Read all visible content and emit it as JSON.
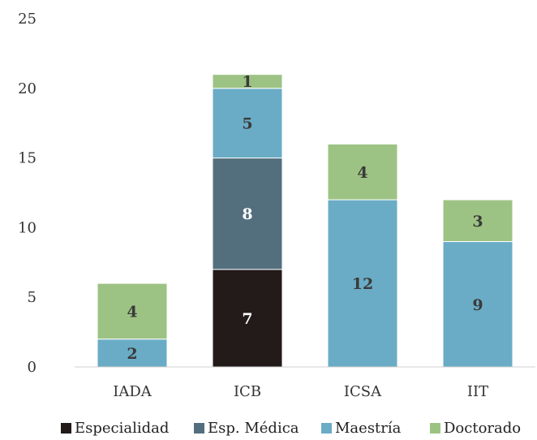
{
  "chart_data": {
    "type": "bar",
    "stacked": true,
    "categories": [
      "IADA",
      "ICB",
      "ICSA",
      "IIT"
    ],
    "series": [
      {
        "name": "Especialidad",
        "color": "#231a1a",
        "values": [
          0,
          7,
          0,
          0
        ]
      },
      {
        "name": "Esp. Médica",
        "color": "#536f7e",
        "values": [
          0,
          8,
          0,
          0
        ]
      },
      {
        "name": "Maestría",
        "color": "#6aacc6",
        "values": [
          2,
          5,
          12,
          9
        ]
      },
      {
        "name": "Doctorado",
        "color": "#9dc384",
        "values": [
          4,
          1,
          4,
          3
        ]
      }
    ],
    "ylim": [
      0,
      25
    ],
    "yticks": [
      0,
      5,
      10,
      15,
      20,
      25
    ],
    "grid": false,
    "legend": "bottom"
  }
}
